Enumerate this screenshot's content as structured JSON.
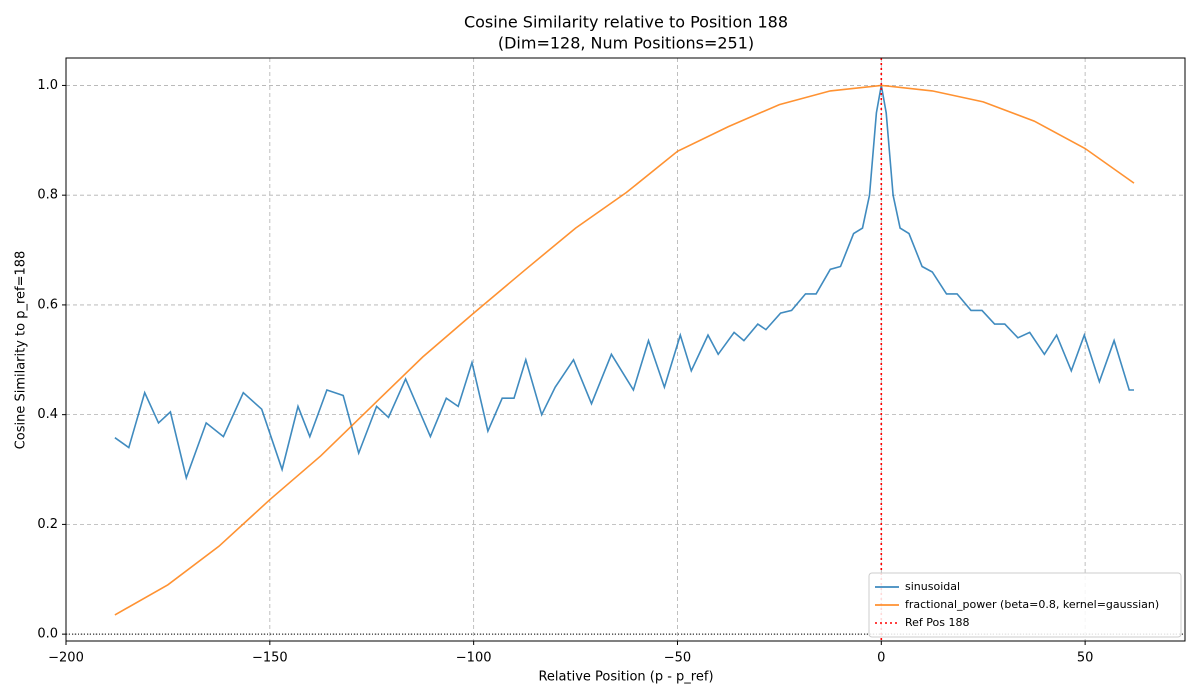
{
  "chart_data": {
    "type": "line",
    "title": "Cosine Similarity relative to Position 188",
    "subtitle": "(Dim=128, Num Positions=251)",
    "x_label": "Relative Position (p - p_ref)",
    "y_label": "Cosine Similarity to p_ref=188",
    "xlim": [
      -200,
      74.5
    ],
    "ylim": [
      -0.0125,
      1.05
    ],
    "xticks": [
      {
        "value": -200,
        "label": "−200"
      },
      {
        "value": -150,
        "label": "−150"
      },
      {
        "value": -100,
        "label": "−100"
      },
      {
        "value": -50,
        "label": "−50"
      },
      0,
      50
    ],
    "yticks": [
      {
        "value": 0,
        "label": "0.0"
      },
      {
        "value": 0.2,
        "label": "0.2"
      },
      {
        "value": 0.4,
        "label": "0.4"
      },
      {
        "value": 0.6,
        "label": "0.6"
      },
      {
        "value": 0.8,
        "label": "0.8"
      },
      {
        "value": 1,
        "label": "1.0"
      }
    ],
    "grid": true,
    "legend": "lower right",
    "series": [
      {
        "name": "sinusoidal",
        "color": "#1f77b4",
        "x": [
          -188,
          -184.6,
          -180.7,
          -177.3,
          -174.4,
          -170.5,
          -165.6,
          -161.4,
          -156.5,
          -152,
          -147,
          -143.1,
          -140.2,
          -136,
          -132,
          -128.2,
          -123.8,
          -120.9,
          -116.7,
          -110.6,
          -106.7,
          -103.8,
          -100.4,
          -96.5,
          -93,
          -90.1,
          -87.2,
          -83.3,
          -80,
          -75.5,
          -71.1,
          -66.2,
          -60.8,
          -57.1,
          -53.2,
          -49.3,
          -46.6,
          -42.5,
          -40,
          -36.1,
          -33.7,
          -30.3,
          -28.3,
          -24.7,
          -22,
          -18.6,
          -16,
          -12.5,
          -10,
          -6.8,
          -4.6,
          -2.9,
          -1.2,
          0,
          1.2,
          2.9,
          4.6,
          6.8,
          10,
          12.5,
          16,
          18.6,
          22,
          24.7,
          27.8,
          30.3,
          33.5,
          36.4,
          40,
          43,
          46.6,
          49.8,
          53.5,
          57.1,
          60.8,
          62
        ],
        "values": [
          0.358,
          0.34,
          0.44,
          0.385,
          0.405,
          0.285,
          0.385,
          0.36,
          0.44,
          0.41,
          0.3,
          0.415,
          0.36,
          0.445,
          0.435,
          0.33,
          0.415,
          0.395,
          0.465,
          0.36,
          0.43,
          0.415,
          0.495,
          0.37,
          0.43,
          0.43,
          0.5,
          0.4,
          0.45,
          0.5,
          0.42,
          0.51,
          0.445,
          0.535,
          0.45,
          0.545,
          0.48,
          0.545,
          0.51,
          0.55,
          0.535,
          0.565,
          0.555,
          0.585,
          0.59,
          0.62,
          0.62,
          0.665,
          0.67,
          0.73,
          0.74,
          0.8,
          0.95,
          1.0,
          0.95,
          0.8,
          0.74,
          0.73,
          0.67,
          0.66,
          0.62,
          0.62,
          0.59,
          0.59,
          0.565,
          0.565,
          0.54,
          0.55,
          0.51,
          0.545,
          0.48,
          0.545,
          0.46,
          0.535,
          0.445,
          0.445
        ]
      },
      {
        "name": "fractional_power (beta=0.8, kernel=gaussian)",
        "color": "#ff7f0e",
        "x": [
          -188,
          -175,
          -162.5,
          -150,
          -137.5,
          -125,
          -112.5,
          -100,
          -87.5,
          -75,
          -62.5,
          -50,
          -37.5,
          -25,
          -12.5,
          0,
          12.5,
          25,
          37.5,
          50,
          62
        ],
        "values": [
          0.035,
          0.09,
          0.16,
          0.245,
          0.325,
          0.415,
          0.505,
          0.585,
          0.663,
          0.74,
          0.805,
          0.88,
          0.925,
          0.965,
          0.99,
          1.0,
          0.99,
          0.97,
          0.935,
          0.885,
          0.822
        ]
      }
    ],
    "ref_line": {
      "x": 0,
      "name": "Ref Pos 188",
      "color": "#ff0000"
    },
    "baseline_y": 0
  }
}
